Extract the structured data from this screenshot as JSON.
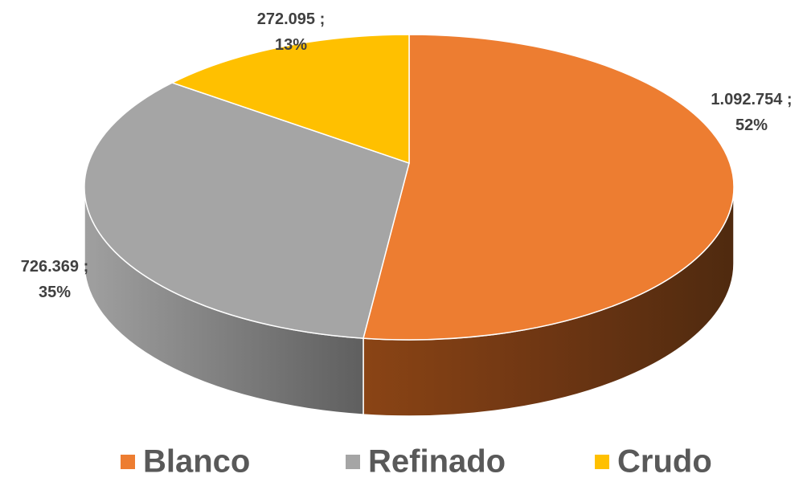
{
  "chart_data": {
    "type": "pie3d",
    "categories": [
      "Blanco",
      "Refinado",
      "Crudo"
    ],
    "values": [
      1092754,
      726369,
      272095
    ],
    "value_labels": [
      "1.092.754 ;",
      "726.369 ;",
      "272.095 ;"
    ],
    "percent_labels": [
      "52%",
      "35%",
      "13%"
    ],
    "colors": [
      "#ED7D31",
      "#A5A5A5",
      "#FFC000"
    ],
    "legend": "bottom"
  }
}
